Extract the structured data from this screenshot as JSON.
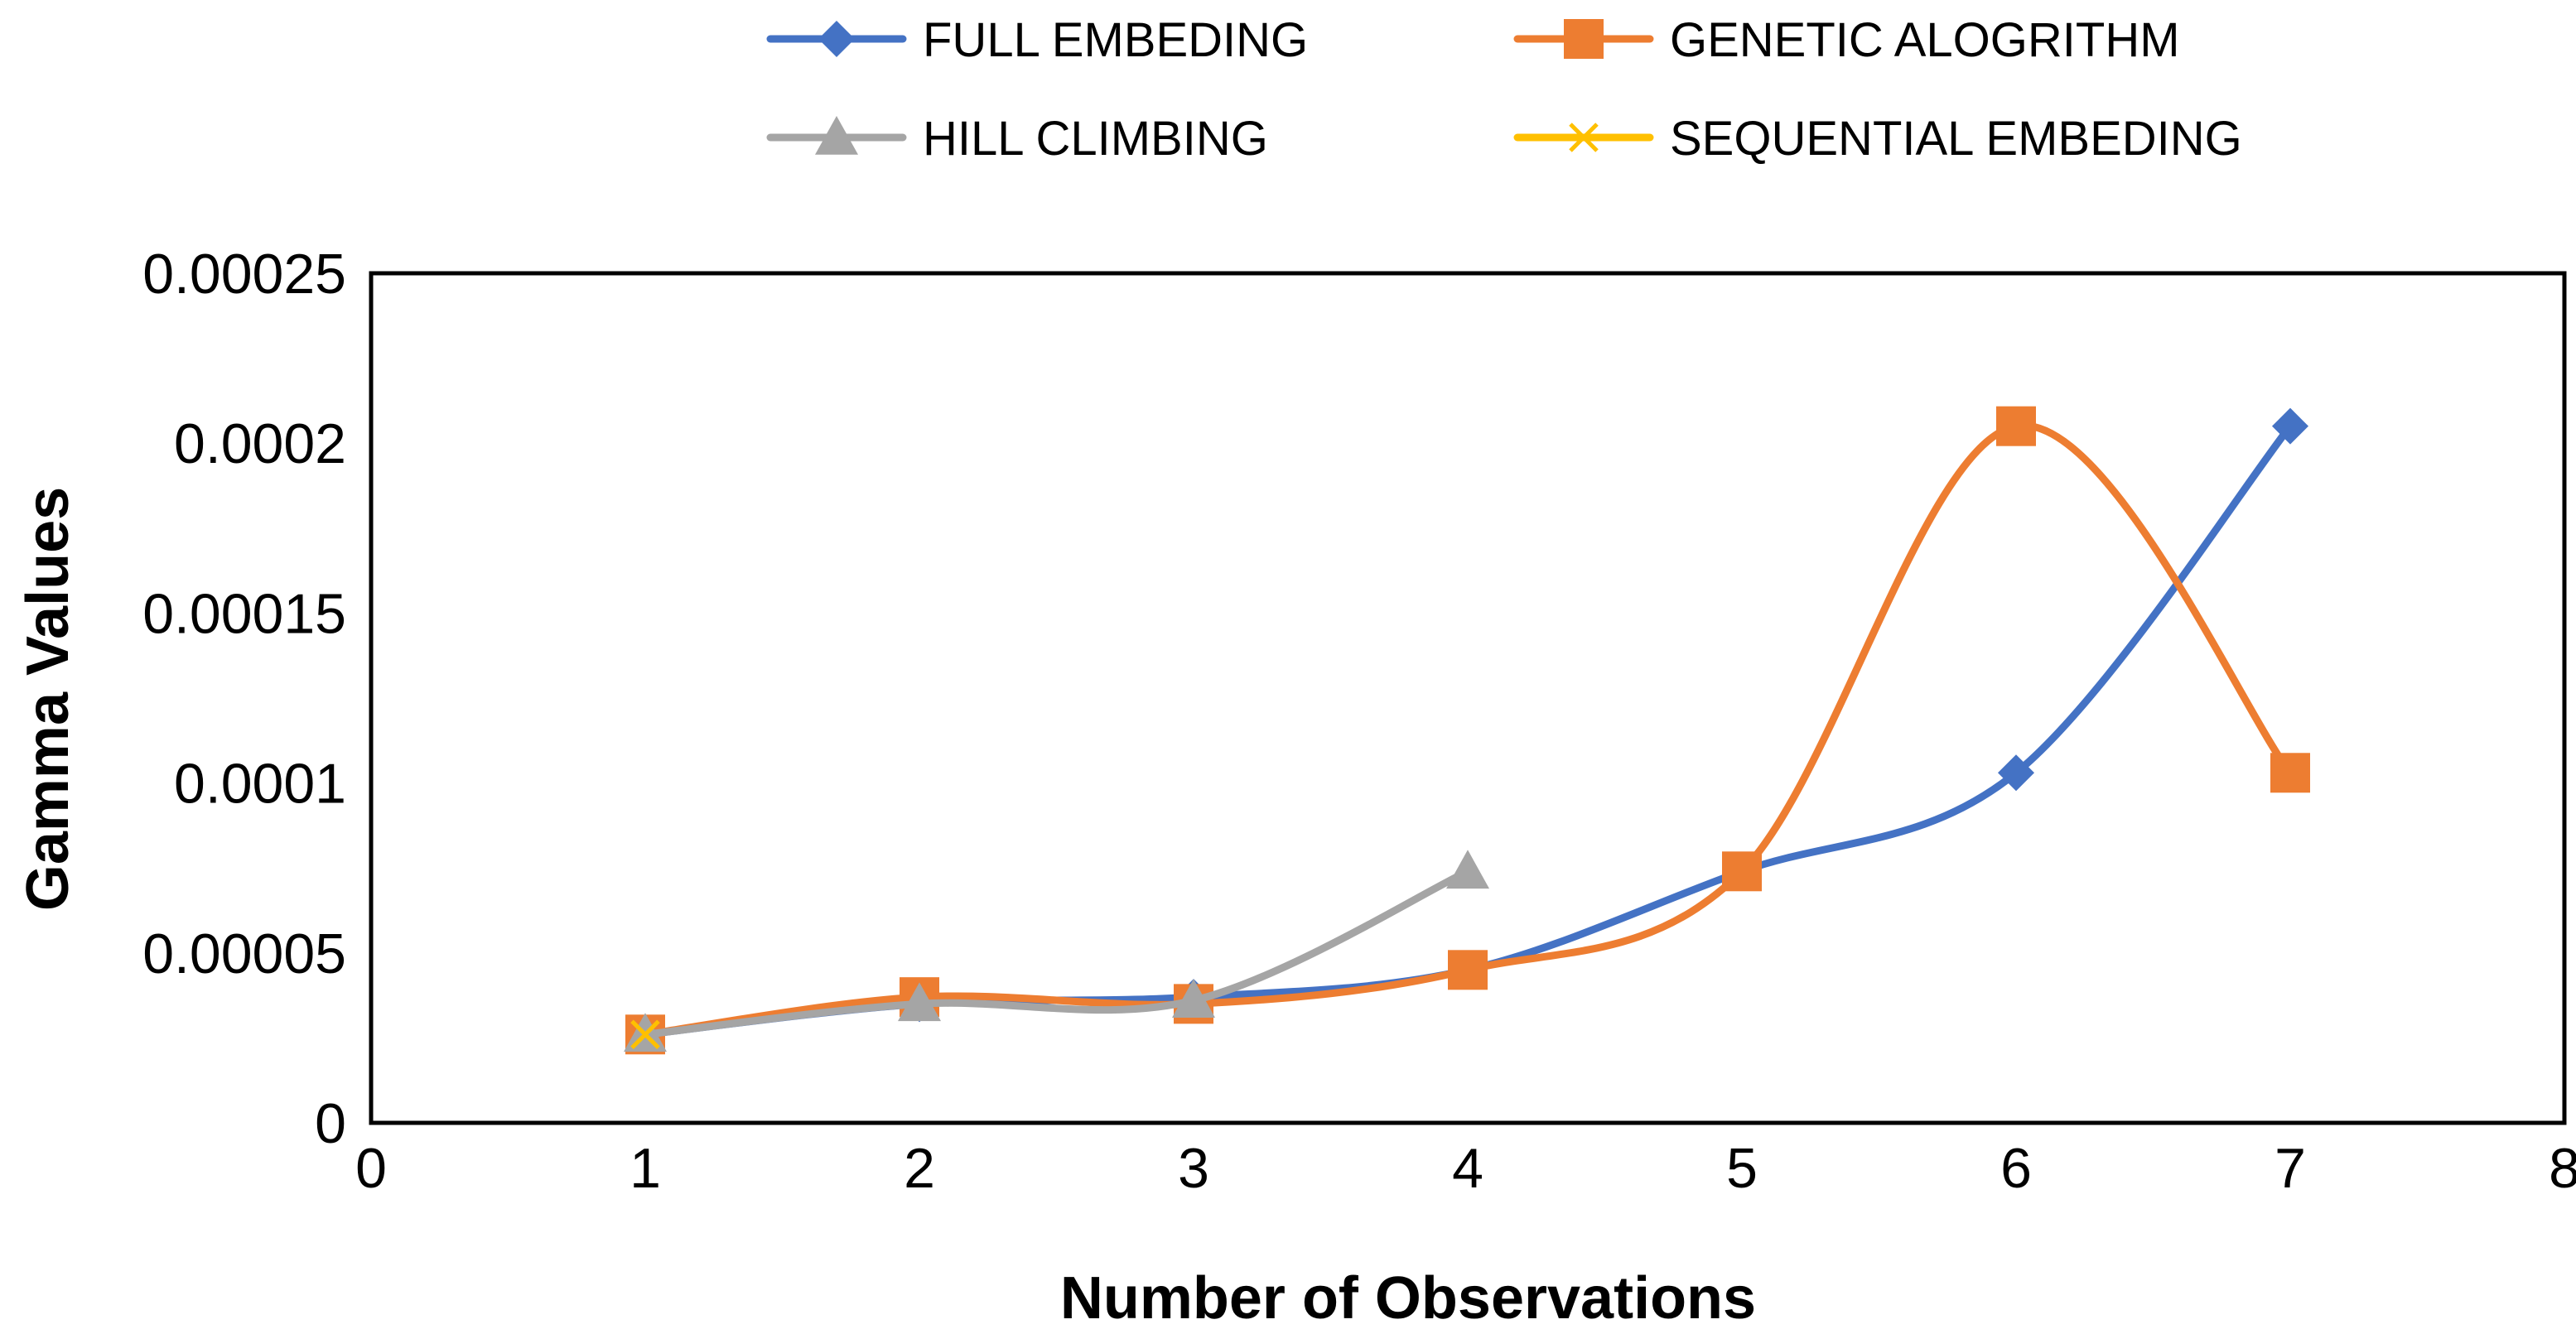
{
  "chart_data": {
    "type": "line",
    "smooth": true,
    "title": "",
    "xlabel": "Number of Observations",
    "ylabel": "Gamma Values",
    "xlim": [
      0,
      8
    ],
    "ylim": [
      0,
      0.00025
    ],
    "xticks": [
      0,
      1,
      2,
      3,
      4,
      5,
      6,
      7,
      8
    ],
    "xtick_labels": [
      "0",
      "1",
      "2",
      "3",
      "4",
      "5",
      "6",
      "7",
      "8"
    ],
    "yticks": [
      0,
      5e-05,
      0.0001,
      0.00015,
      0.0002,
      0.00025
    ],
    "ytick_labels": [
      "0",
      "0.00005",
      "0.0001",
      "0.00015",
      "0.0002",
      "0.00025"
    ],
    "grid": false,
    "legend_position": "top",
    "series": [
      {
        "name": "FULL EMBEDING",
        "color": "#4472C4",
        "marker": "diamond",
        "x": [
          1,
          2,
          3,
          4,
          5,
          6,
          7
        ],
        "values": [
          2.6e-05,
          3.5e-05,
          3.7e-05,
          4.5e-05,
          7.4e-05,
          0.000103,
          0.000205
        ]
      },
      {
        "name": "GENETIC ALOGRITHM",
        "color": "#ED7D31",
        "marker": "square",
        "x": [
          1,
          2,
          3,
          4,
          5,
          6,
          7
        ],
        "values": [
          2.6e-05,
          3.7e-05,
          3.5e-05,
          4.5e-05,
          7.4e-05,
          0.000205,
          0.000103
        ]
      },
      {
        "name": "HILL CLIMBING",
        "color": "#A5A5A5",
        "marker": "triangle",
        "x": [
          1,
          2,
          3,
          4
        ],
        "values": [
          2.6e-05,
          3.5e-05,
          3.6e-05,
          7.4e-05
        ]
      },
      {
        "name": "SEQUENTIAL EMBEDING",
        "color": "#FFC000",
        "marker": "x",
        "x": [
          1
        ],
        "values": [
          2.6e-05
        ]
      }
    ]
  }
}
